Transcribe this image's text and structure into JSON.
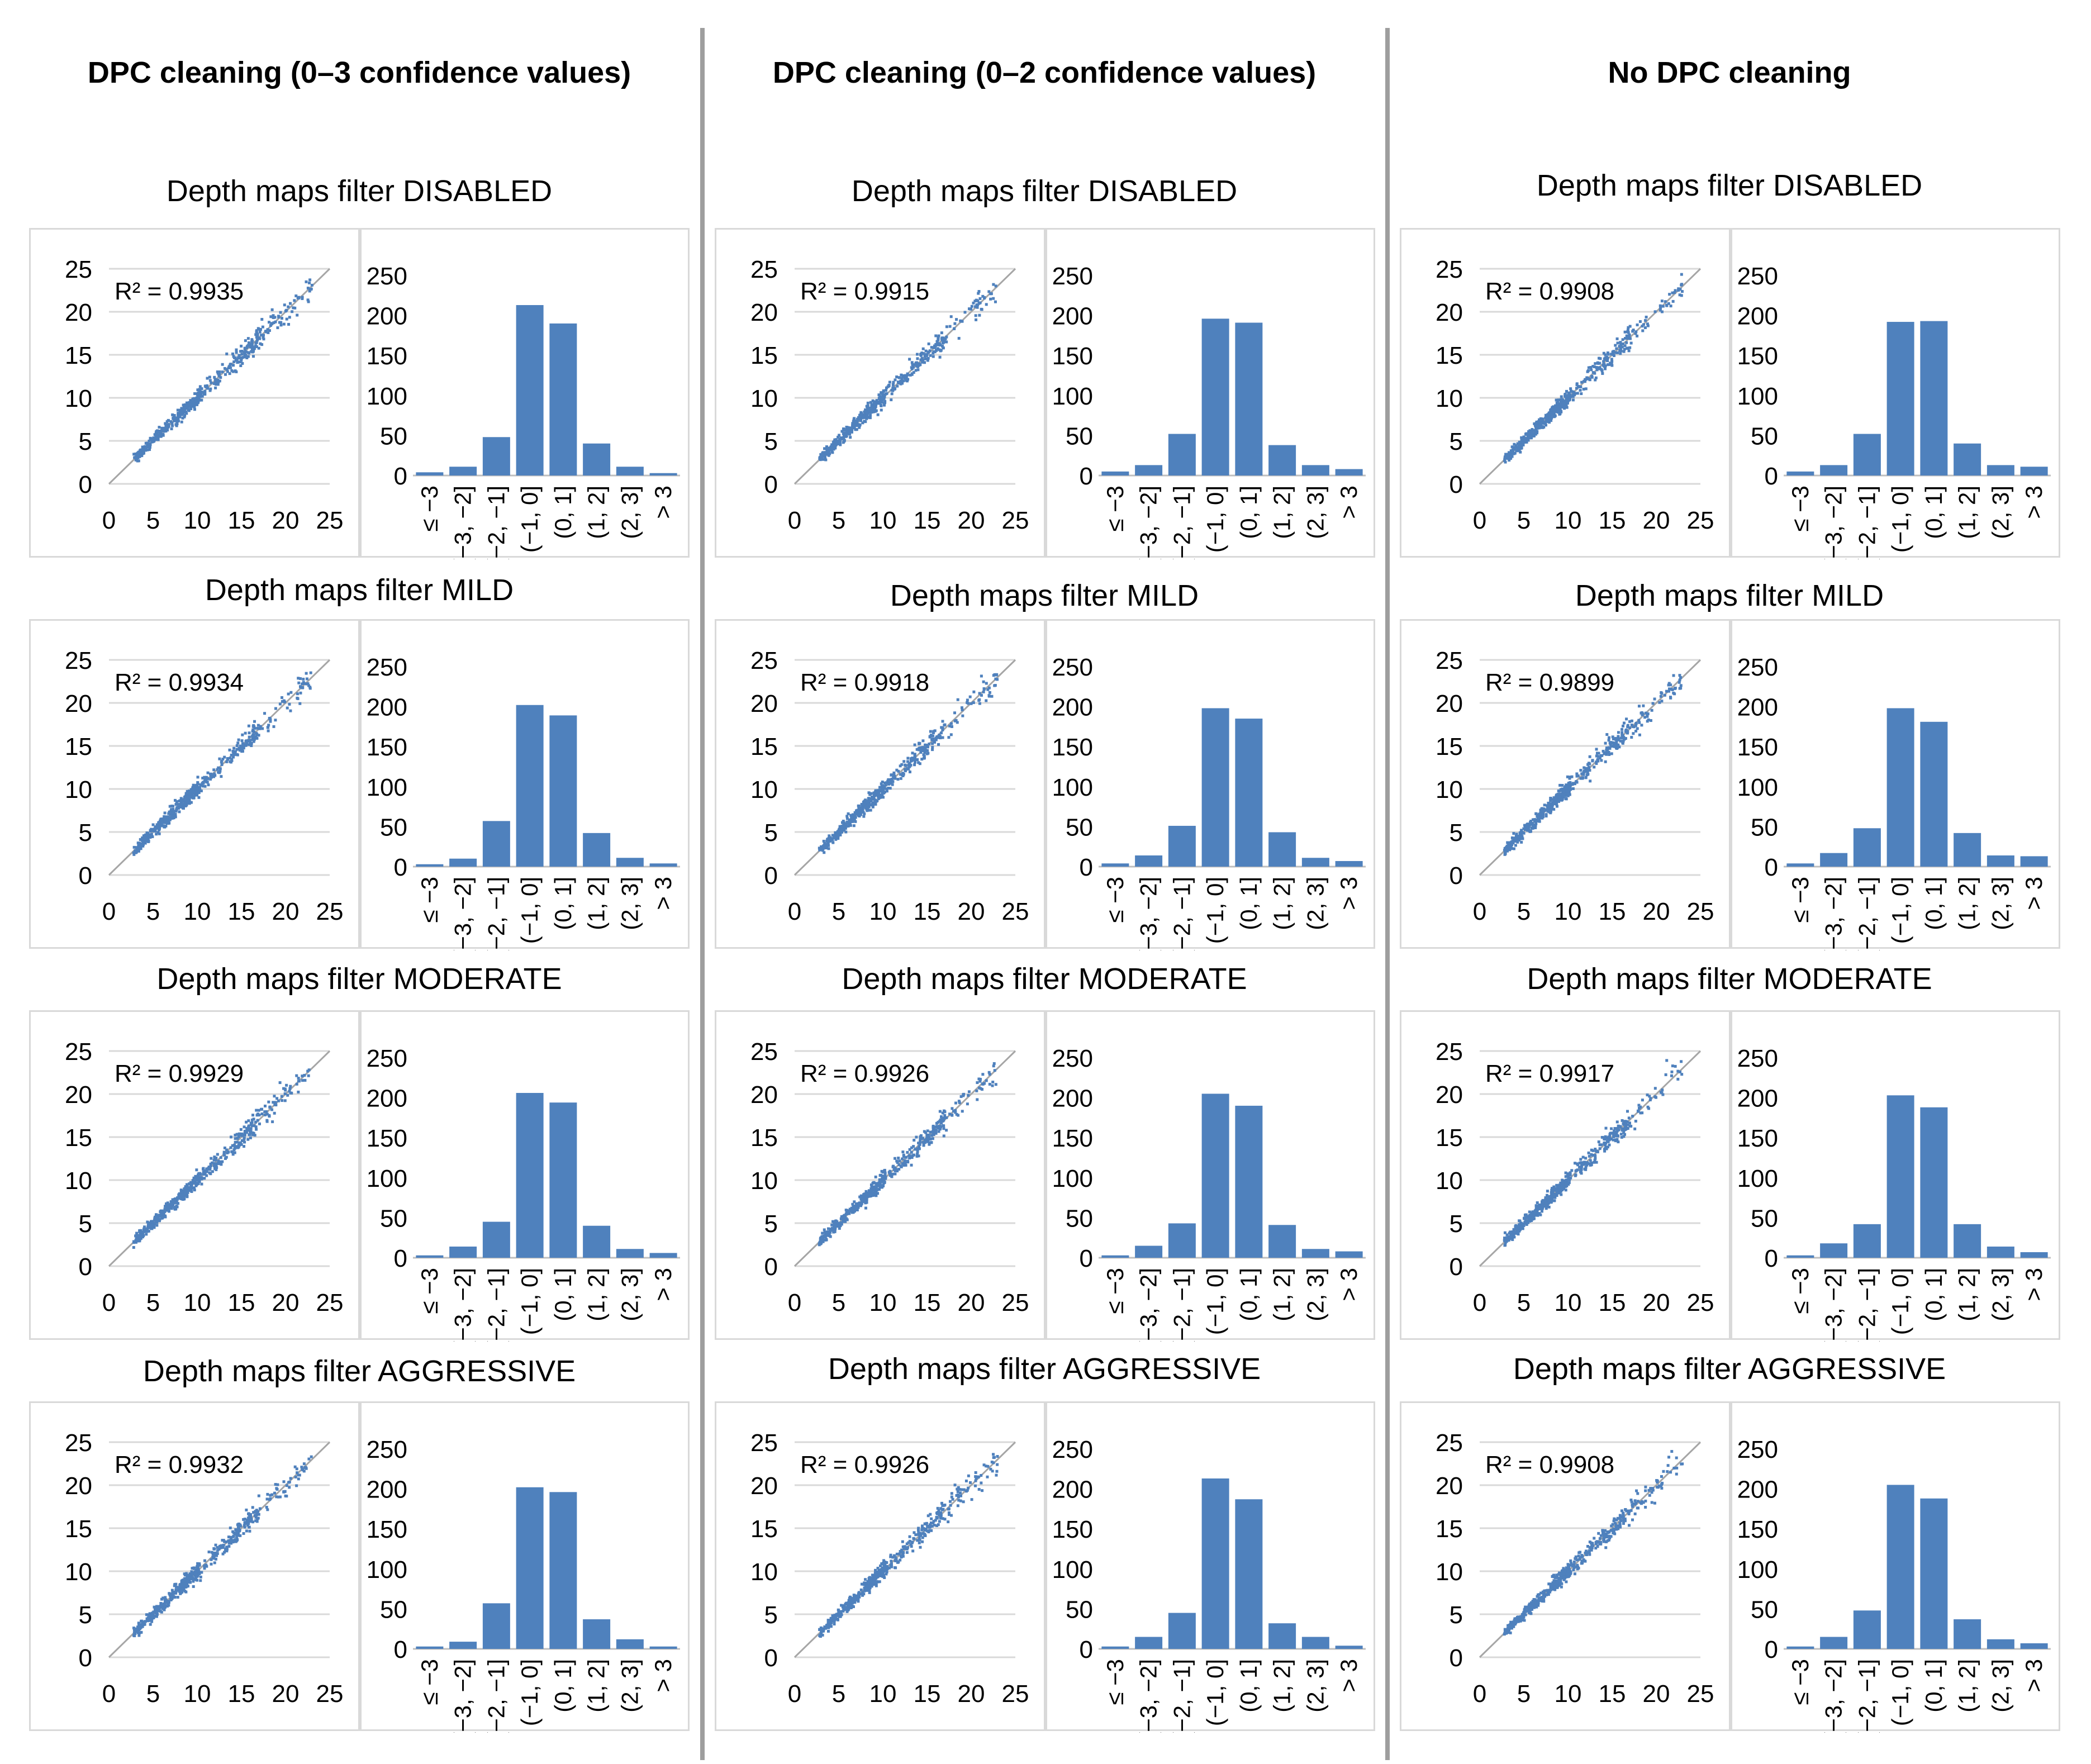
{
  "figure": {
    "columns": [
      {
        "title": "DPC cleaning (0–3 confidence values)"
      },
      {
        "title": "DPC cleaning (0–2 confidence values)"
      },
      {
        "title": "No DPC cleaning"
      }
    ],
    "rows": [
      {
        "title": "Depth maps filter DISABLED"
      },
      {
        "title": "Depth maps filter MILD"
      },
      {
        "title": "Depth maps filter MODERATE"
      },
      {
        "title": "Depth maps filter AGGRESSIVE"
      }
    ],
    "colors": {
      "accent": "#4f81bd",
      "bar_edge": "#ffffff",
      "grid": "#d9d9d9",
      "axis": "#bfbfbf",
      "identity_line": "#a6a6a6",
      "divider": "#9e9e9e"
    }
  },
  "chart_data": [
    {
      "type": "scatter",
      "panel": "r0c0",
      "r2_label": "R² = 0.9935",
      "xlim": [
        0,
        25
      ],
      "ylim": [
        0,
        25
      ],
      "xticks": [
        "0",
        "5",
        "10",
        "15",
        "20",
        "25"
      ],
      "yticks": [
        "0",
        "5",
        "10",
        "15",
        "20",
        "25"
      ],
      "reference_line": [
        [
          0,
          0
        ],
        [
          25,
          25
        ]
      ]
    },
    {
      "type": "bar",
      "panel": "r0c0",
      "categories": [
        "≤ −3",
        "(−3, −2]",
        "(−2, −1]",
        "(−1, 0]",
        "(0, 1]",
        "(1, 2]",
        "(2, 3]",
        "> 3"
      ],
      "values": [
        4,
        11,
        48,
        213,
        190,
        40,
        11,
        3
      ],
      "ylim": [
        0,
        250
      ],
      "yticks": [
        "0",
        "50",
        "100",
        "150",
        "200",
        "250"
      ]
    },
    {
      "type": "scatter",
      "panel": "r0c1",
      "r2_label": "R² = 0.9915",
      "xlim": [
        0,
        25
      ],
      "ylim": [
        0,
        25
      ],
      "xticks": [
        "0",
        "5",
        "10",
        "15",
        "20",
        "25"
      ],
      "yticks": [
        "0",
        "5",
        "10",
        "15",
        "20",
        "25"
      ],
      "reference_line": [
        [
          0,
          0
        ],
        [
          25,
          25
        ]
      ]
    },
    {
      "type": "bar",
      "panel": "r0c1",
      "categories": [
        "≤ −3",
        "(−3, −2]",
        "(−2, −1]",
        "(−1, 0]",
        "(0, 1]",
        "(1, 2]",
        "(2, 3]",
        "> 3"
      ],
      "values": [
        5,
        13,
        52,
        196,
        191,
        38,
        13,
        8
      ],
      "ylim": [
        0,
        250
      ],
      "yticks": [
        "0",
        "50",
        "100",
        "150",
        "200",
        "250"
      ]
    },
    {
      "type": "scatter",
      "panel": "r0c2",
      "r2_label": "R² = 0.9908",
      "xlim": [
        0,
        25
      ],
      "ylim": [
        0,
        25
      ],
      "xticks": [
        "0",
        "5",
        "10",
        "15",
        "20",
        "25"
      ],
      "yticks": [
        "0",
        "5",
        "10",
        "15",
        "20",
        "25"
      ],
      "reference_line": [
        [
          0,
          0
        ],
        [
          25,
          25
        ]
      ]
    },
    {
      "type": "bar",
      "panel": "r0c2",
      "categories": [
        "≤ −3",
        "(−3, −2]",
        "(−2, −1]",
        "(−1, 0]",
        "(0, 1]",
        "(1, 2]",
        "(2, 3]",
        "> 3"
      ],
      "values": [
        5,
        13,
        52,
        192,
        193,
        40,
        13,
        11
      ],
      "ylim": [
        0,
        250
      ],
      "yticks": [
        "0",
        "50",
        "100",
        "150",
        "200",
        "250"
      ]
    },
    {
      "type": "scatter",
      "panel": "r1c0",
      "r2_label": "R² = 0.9934",
      "xlim": [
        0,
        25
      ],
      "ylim": [
        0,
        25
      ],
      "xticks": [
        "0",
        "5",
        "10",
        "15",
        "20",
        "25"
      ],
      "yticks": [
        "0",
        "5",
        "10",
        "15",
        "20",
        "25"
      ],
      "reference_line": [
        [
          0,
          0
        ],
        [
          25,
          25
        ]
      ]
    },
    {
      "type": "bar",
      "panel": "r1c0",
      "categories": [
        "≤ −3",
        "(−3, −2]",
        "(−2, −1]",
        "(−1, 0]",
        "(0, 1]",
        "(1, 2]",
        "(2, 3]",
        "> 3"
      ],
      "values": [
        3,
        10,
        57,
        202,
        189,
        42,
        11,
        4
      ],
      "ylim": [
        0,
        250
      ],
      "yticks": [
        "0",
        "50",
        "100",
        "150",
        "200",
        "250"
      ]
    },
    {
      "type": "scatter",
      "panel": "r1c1",
      "r2_label": "R² = 0.9918",
      "xlim": [
        0,
        25
      ],
      "ylim": [
        0,
        25
      ],
      "xticks": [
        "0",
        "5",
        "10",
        "15",
        "20",
        "25"
      ],
      "yticks": [
        "0",
        "5",
        "10",
        "15",
        "20",
        "25"
      ],
      "reference_line": [
        [
          0,
          0
        ],
        [
          25,
          25
        ]
      ]
    },
    {
      "type": "bar",
      "panel": "r1c1",
      "categories": [
        "≤ −3",
        "(−3, −2]",
        "(−2, −1]",
        "(−1, 0]",
        "(0, 1]",
        "(1, 2]",
        "(2, 3]",
        "> 3"
      ],
      "values": [
        4,
        14,
        51,
        198,
        185,
        43,
        11,
        7
      ],
      "ylim": [
        0,
        250
      ],
      "yticks": [
        "0",
        "50",
        "100",
        "150",
        "200",
        "250"
      ]
    },
    {
      "type": "scatter",
      "panel": "r1c2",
      "r2_label": "R² = 0.9899",
      "xlim": [
        0,
        25
      ],
      "ylim": [
        0,
        25
      ],
      "xticks": [
        "0",
        "5",
        "10",
        "15",
        "20",
        "25"
      ],
      "yticks": [
        "0",
        "5",
        "10",
        "15",
        "20",
        "25"
      ],
      "reference_line": [
        [
          0,
          0
        ],
        [
          25,
          25
        ]
      ]
    },
    {
      "type": "bar",
      "panel": "r1c2",
      "categories": [
        "≤ −3",
        "(−3, −2]",
        "(−2, −1]",
        "(−1, 0]",
        "(0, 1]",
        "(1, 2]",
        "(2, 3]",
        "> 3"
      ],
      "values": [
        4,
        17,
        48,
        198,
        181,
        42,
        14,
        13
      ],
      "ylim": [
        0,
        250
      ],
      "yticks": [
        "0",
        "50",
        "100",
        "150",
        "200",
        "250"
      ]
    },
    {
      "type": "scatter",
      "panel": "r2c0",
      "r2_label": "R² = 0.9929",
      "xlim": [
        0,
        25
      ],
      "ylim": [
        0,
        25
      ],
      "xticks": [
        "0",
        "5",
        "10",
        "15",
        "20",
        "25"
      ],
      "yticks": [
        "0",
        "5",
        "10",
        "15",
        "20",
        "25"
      ],
      "reference_line": [
        [
          0,
          0
        ],
        [
          25,
          25
        ]
      ]
    },
    {
      "type": "bar",
      "panel": "r2c0",
      "categories": [
        "≤ −3",
        "(−3, −2]",
        "(−2, −1]",
        "(−1, 0]",
        "(0, 1]",
        "(1, 2]",
        "(2, 3]",
        "> 3"
      ],
      "values": [
        3,
        14,
        45,
        206,
        194,
        40,
        11,
        6
      ],
      "ylim": [
        0,
        250
      ],
      "yticks": [
        "0",
        "50",
        "100",
        "150",
        "200",
        "250"
      ]
    },
    {
      "type": "scatter",
      "panel": "r2c1",
      "r2_label": "R² = 0.9926",
      "xlim": [
        0,
        25
      ],
      "ylim": [
        0,
        25
      ],
      "xticks": [
        "0",
        "5",
        "10",
        "15",
        "20",
        "25"
      ],
      "yticks": [
        "0",
        "5",
        "10",
        "15",
        "20",
        "25"
      ],
      "reference_line": [
        [
          0,
          0
        ],
        [
          25,
          25
        ]
      ]
    },
    {
      "type": "bar",
      "panel": "r2c1",
      "categories": [
        "≤ −3",
        "(−3, −2]",
        "(−2, −1]",
        "(−1, 0]",
        "(0, 1]",
        "(1, 2]",
        "(2, 3]",
        "> 3"
      ],
      "values": [
        3,
        15,
        43,
        205,
        190,
        41,
        11,
        8
      ],
      "ylim": [
        0,
        250
      ],
      "yticks": [
        "0",
        "50",
        "100",
        "150",
        "200",
        "250"
      ]
    },
    {
      "type": "scatter",
      "panel": "r2c2",
      "r2_label": "R² = 0.9917",
      "xlim": [
        0,
        25
      ],
      "ylim": [
        0,
        25
      ],
      "xticks": [
        "0",
        "5",
        "10",
        "15",
        "20",
        "25"
      ],
      "yticks": [
        "0",
        "5",
        "10",
        "15",
        "20",
        "25"
      ],
      "reference_line": [
        [
          0,
          0
        ],
        [
          25,
          25
        ]
      ]
    },
    {
      "type": "bar",
      "panel": "r2c2",
      "categories": [
        "≤ −3",
        "(−3, −2]",
        "(−2, −1]",
        "(−1, 0]",
        "(0, 1]",
        "(1, 2]",
        "(2, 3]",
        "> 3"
      ],
      "values": [
        3,
        18,
        42,
        203,
        188,
        42,
        14,
        7
      ],
      "ylim": [
        0,
        250
      ],
      "yticks": [
        "0",
        "50",
        "100",
        "150",
        "200",
        "250"
      ]
    },
    {
      "type": "scatter",
      "panel": "r3c0",
      "r2_label": "R² = 0.9932",
      "xlim": [
        0,
        25
      ],
      "ylim": [
        0,
        25
      ],
      "xticks": [
        "0",
        "5",
        "10",
        "15",
        "20",
        "25"
      ],
      "yticks": [
        "0",
        "5",
        "10",
        "15",
        "20",
        "25"
      ],
      "reference_line": [
        [
          0,
          0
        ],
        [
          25,
          25
        ]
      ]
    },
    {
      "type": "bar",
      "panel": "r3c0",
      "categories": [
        "≤ −3",
        "(−3, −2]",
        "(−2, −1]",
        "(−1, 0]",
        "(0, 1]",
        "(1, 2]",
        "(2, 3]",
        "> 3"
      ],
      "values": [
        3,
        9,
        57,
        202,
        196,
        37,
        12,
        3
      ],
      "ylim": [
        0,
        250
      ],
      "yticks": [
        "0",
        "50",
        "100",
        "150",
        "200",
        "250"
      ]
    },
    {
      "type": "scatter",
      "panel": "r3c1",
      "r2_label": "R² = 0.9926",
      "xlim": [
        0,
        25
      ],
      "ylim": [
        0,
        25
      ],
      "xticks": [
        "0",
        "5",
        "10",
        "15",
        "20",
        "25"
      ],
      "yticks": [
        "0",
        "5",
        "10",
        "15",
        "20",
        "25"
      ],
      "reference_line": [
        [
          0,
          0
        ],
        [
          25,
          25
        ]
      ]
    },
    {
      "type": "bar",
      "panel": "r3c1",
      "categories": [
        "≤ −3",
        "(−3, −2]",
        "(−2, −1]",
        "(−1, 0]",
        "(0, 1]",
        "(1, 2]",
        "(2, 3]",
        "> 3"
      ],
      "values": [
        3,
        15,
        45,
        213,
        187,
        32,
        15,
        4
      ],
      "ylim": [
        0,
        250
      ],
      "yticks": [
        "0",
        "50",
        "100",
        "150",
        "200",
        "250"
      ]
    },
    {
      "type": "scatter",
      "panel": "r3c2",
      "r2_label": "R² = 0.9908",
      "xlim": [
        0,
        25
      ],
      "ylim": [
        0,
        25
      ],
      "xticks": [
        "0",
        "5",
        "10",
        "15",
        "20",
        "25"
      ],
      "yticks": [
        "0",
        "5",
        "10",
        "15",
        "20",
        "25"
      ],
      "reference_line": [
        [
          0,
          0
        ],
        [
          25,
          25
        ]
      ]
    },
    {
      "type": "bar",
      "panel": "r3c2",
      "categories": [
        "≤ −3",
        "(−3, −2]",
        "(−2, −1]",
        "(−1, 0]",
        "(0, 1]",
        "(1, 2]",
        "(2, 3]",
        "> 3"
      ],
      "values": [
        3,
        15,
        48,
        205,
        188,
        37,
        12,
        7
      ],
      "ylim": [
        0,
        250
      ],
      "yticks": [
        "0",
        "50",
        "100",
        "150",
        "200",
        "250"
      ]
    }
  ]
}
